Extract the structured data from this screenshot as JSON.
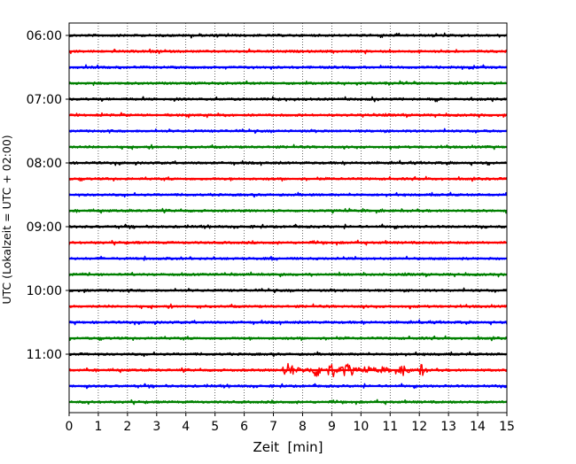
{
  "chart_data": {
    "type": "line",
    "title": "",
    "xlabel": "Zeit  [min]",
    "ylabel": "UTC (Lokalzeit = UTC + 02:00)",
    "xlim": [
      0,
      15
    ],
    "x_ticks": [
      0,
      1,
      2,
      3,
      4,
      5,
      6,
      7,
      8,
      9,
      10,
      11,
      12,
      13,
      14,
      15
    ],
    "x_tick_labels": [
      "0",
      "1",
      "2",
      "3",
      "4",
      "5",
      "6",
      "7",
      "8",
      "9",
      "10",
      "11",
      "12",
      "13",
      "14",
      "15"
    ],
    "y_tick_labels": [
      "06:00",
      "07:00",
      "08:00",
      "09:00",
      "10:00",
      "11:00"
    ],
    "y_range_hours": [
      "06:00",
      "12:00"
    ],
    "grid": "vertical dotted lines at every minute",
    "legend": "none",
    "trace_duration_min": 15,
    "color_cycle": [
      "#000000",
      "#ff0000",
      "#0000ff",
      "#008000"
    ],
    "traces": [
      {
        "start": "06:00",
        "color": "#000000"
      },
      {
        "start": "06:15",
        "color": "#ff0000"
      },
      {
        "start": "06:30",
        "color": "#0000ff"
      },
      {
        "start": "06:45",
        "color": "#008000"
      },
      {
        "start": "07:00",
        "color": "#000000"
      },
      {
        "start": "07:15",
        "color": "#ff0000"
      },
      {
        "start": "07:30",
        "color": "#0000ff"
      },
      {
        "start": "07:45",
        "color": "#008000"
      },
      {
        "start": "08:00",
        "color": "#000000"
      },
      {
        "start": "08:15",
        "color": "#ff0000"
      },
      {
        "start": "08:30",
        "color": "#0000ff"
      },
      {
        "start": "08:45",
        "color": "#008000"
      },
      {
        "start": "09:00",
        "color": "#000000"
      },
      {
        "start": "09:15",
        "color": "#ff0000"
      },
      {
        "start": "09:30",
        "color": "#0000ff"
      },
      {
        "start": "09:45",
        "color": "#008000"
      },
      {
        "start": "10:00",
        "color": "#000000"
      },
      {
        "start": "10:15",
        "color": "#ff0000"
      },
      {
        "start": "10:30",
        "color": "#0000ff"
      },
      {
        "start": "10:45",
        "color": "#008000"
      },
      {
        "start": "11:00",
        "color": "#000000"
      },
      {
        "start": "11:15",
        "color": "#ff0000",
        "events_min": [
          7.5,
          8.5,
          9.0,
          9.5,
          11.5,
          12.1
        ]
      },
      {
        "start": "11:30",
        "color": "#0000ff"
      },
      {
        "start": "11:45",
        "color": "#008000"
      }
    ]
  }
}
